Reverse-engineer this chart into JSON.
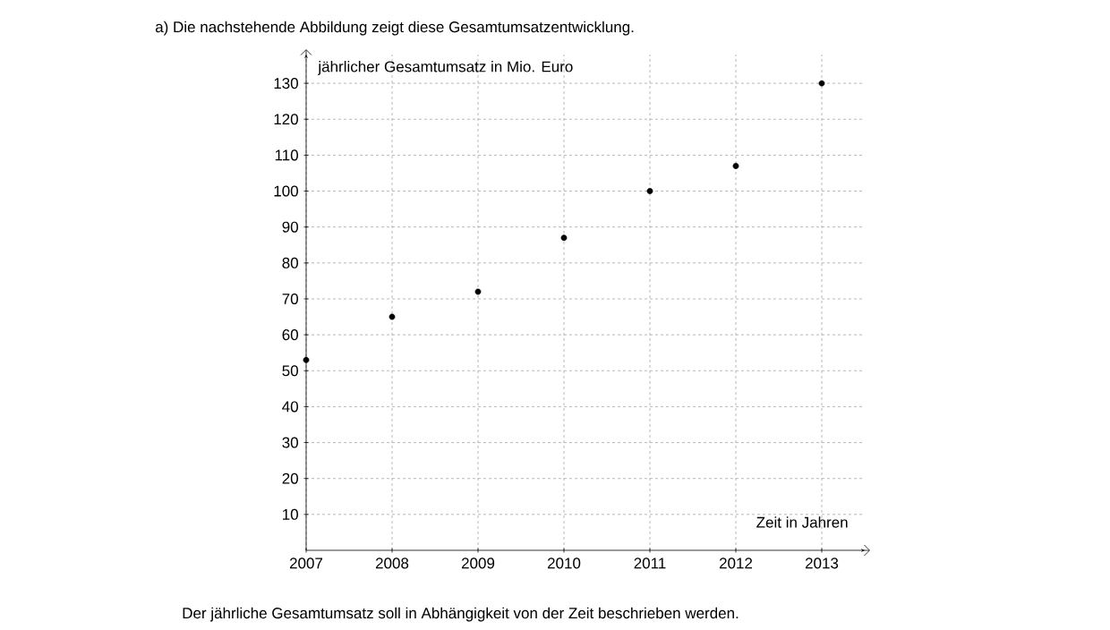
{
  "chart_data": {
    "type": "scatter",
    "title": "a)  Die nachstehende Abbildung zeigt diese Gesamtumsatzentwicklung.",
    "xlabel": "Zeit in Jahren",
    "ylabel": "jährlicher Gesamtumsatz in Mio. Euro",
    "annotations": [
      "Der jährliche Gesamtumsatz soll in Abhängigkeit von der Zeit beschrieben werden."
    ],
    "x": [
      2007,
      2008,
      2009,
      2010,
      2011,
      2012,
      2013
    ],
    "values": [
      53,
      65,
      72,
      87,
      100,
      107,
      130
    ],
    "color": "#000000",
    "marker": "circle",
    "xlim": [
      2007,
      2013.5
    ],
    "ylim": [
      0,
      138
    ],
    "xticks": [
      2007,
      2008,
      2009,
      2010,
      2011,
      2012,
      2013
    ],
    "yticks": [
      10,
      20,
      30,
      40,
      50,
      60,
      70,
      80,
      90,
      100,
      110,
      120,
      130
    ],
    "grid": true
  }
}
